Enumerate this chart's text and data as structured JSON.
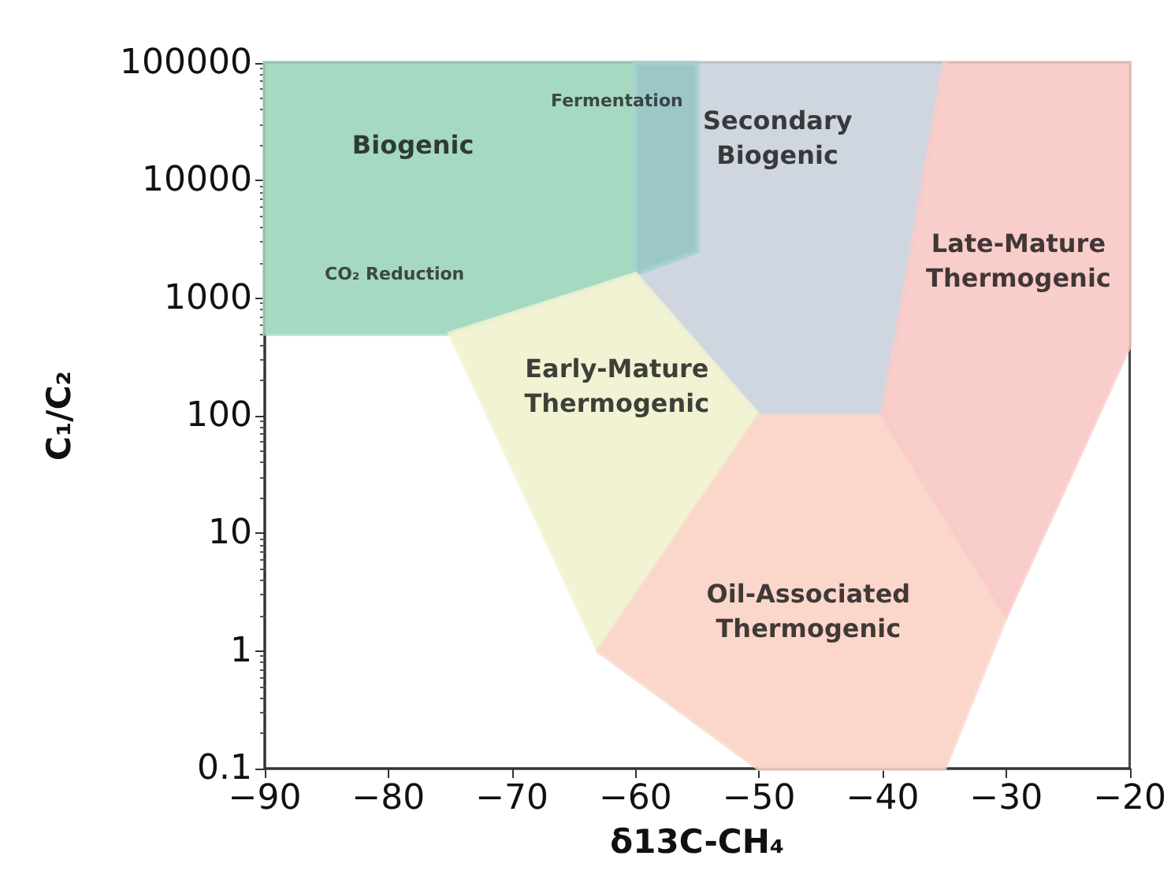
{
  "chart_data": {
    "type": "area",
    "xlabel": "δ13C-CH₄",
    "ylabel": "C₁/C₂",
    "log": "y",
    "grid": false,
    "xlim": [
      -90,
      -20
    ],
    "xticks": [
      -90,
      -80,
      -70,
      -60,
      -50,
      -40,
      -30,
      -20
    ],
    "ylim": [
      0.1,
      100000
    ],
    "yticks": [
      0.1,
      1,
      10,
      100,
      1000,
      10000,
      100000
    ],
    "series": [
      {
        "name": "Biogenic",
        "color": "#8fcfb2",
        "x": [
          -90,
          -60,
          -60,
          -75,
          -90
        ],
        "values": [
          100000,
          100000,
          1600,
          500,
          500
        ]
      },
      {
        "name": "Secondary\nBiogenic",
        "color": "#c3ccd8",
        "x": [
          -60,
          -35,
          -40,
          -50,
          -60
        ],
        "values": [
          100000,
          100000,
          100,
          100,
          1600
        ]
      },
      {
        "name": "Fermentation",
        "color": "#8fc3c3",
        "x": [
          -60,
          -55,
          -55,
          -60
        ],
        "values": [
          100000,
          100000,
          2500,
          1600
        ]
      },
      {
        "name": "Early-Mature\nThermogenic",
        "color": "#eef0c8",
        "x": [
          -75,
          -60,
          -50,
          -63
        ],
        "values": [
          500,
          1600,
          100,
          1
        ]
      },
      {
        "name": "Oil-Associated\nThermogenic",
        "color": "#f9cdbd",
        "x": [
          -50,
          -40,
          -30,
          -35,
          -50,
          -63
        ],
        "values": [
          100,
          100,
          2,
          0.1,
          0.1,
          1
        ]
      },
      {
        "name": "Late-Mature\nThermogenic",
        "color": "#f8c0bc",
        "x": [
          -35,
          -20,
          -20,
          -30,
          -40
        ],
        "values": [
          100000,
          100000,
          400,
          2,
          100
        ]
      }
    ],
    "annotations": [
      "CO₂ Reduction"
    ]
  }
}
